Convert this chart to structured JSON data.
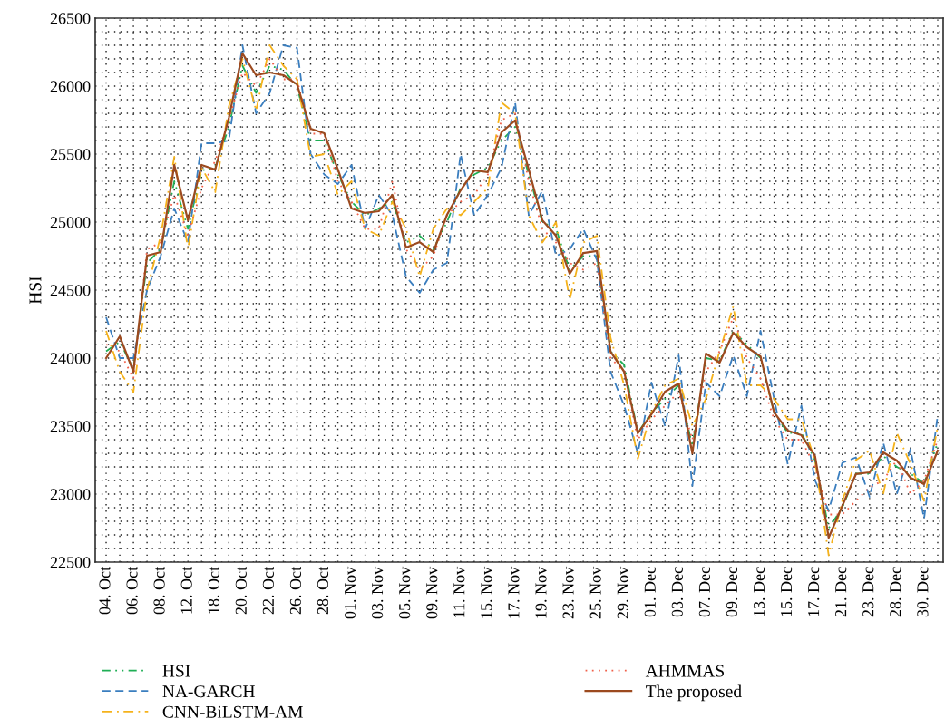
{
  "chart_data": {
    "type": "line",
    "ylabel": "HSI",
    "categories": [
      "04. Oct",
      null,
      "06. Oct",
      null,
      "08. Oct",
      null,
      "12. Oct",
      null,
      "18. Oct",
      null,
      "20. Oct",
      null,
      "22. Oct",
      null,
      "26. Oct",
      null,
      "28. Oct",
      null,
      "01. Nov",
      null,
      "03. Nov",
      null,
      "05. Nov",
      null,
      "09. Nov",
      null,
      "11. Nov",
      null,
      "15. Nov",
      null,
      "17. Nov",
      null,
      "19. Nov",
      null,
      "23. Nov",
      null,
      "25. Nov",
      null,
      "29. Nov",
      null,
      "01. Dec",
      null,
      "03. Dec",
      null,
      "07. Dec",
      null,
      "09. Dec",
      null,
      "13. Dec",
      null,
      "15. Dec",
      null,
      "17. Dec",
      null,
      "21. Dec",
      null,
      "23. Dec",
      null,
      "28. Dec",
      null,
      "30. Dec",
      null
    ],
    "series": [
      {
        "name": "HSI",
        "color": "#1fae55",
        "line_style": "dashdotdot",
        "values": [
          24050,
          24120,
          23920,
          24700,
          24800,
          25300,
          24950,
          25380,
          25400,
          25700,
          26150,
          25950,
          26150,
          26120,
          26000,
          25600,
          25600,
          25350,
          25150,
          25050,
          25100,
          25150,
          24850,
          24900,
          24800,
          25000,
          25250,
          25350,
          25400,
          25600,
          25700,
          25350,
          25000,
          24950,
          24650,
          24750,
          24750,
          24050,
          23950,
          23450,
          23600,
          23700,
          23800,
          23350,
          24000,
          23980,
          24200,
          24100,
          24000,
          23600,
          23450,
          23450,
          23250,
          22750,
          22900,
          23150,
          23150,
          23280,
          23200,
          23150,
          23080,
          23380
        ]
      },
      {
        "name": "NA-GARCH",
        "color": "#3a7ebf",
        "line_style": "dashed",
        "values": [
          24300,
          24000,
          24000,
          24500,
          24750,
          25100,
          24850,
          25580,
          25580,
          25600,
          26300,
          25800,
          25950,
          26300,
          26280,
          25500,
          25350,
          25280,
          25420,
          24950,
          25200,
          25050,
          24600,
          24480,
          24650,
          24700,
          25500,
          25050,
          25200,
          25400,
          25880,
          25050,
          25230,
          24750,
          24800,
          24950,
          24720,
          23900,
          23650,
          23300,
          23820,
          23500,
          24020,
          23060,
          23820,
          23720,
          24020,
          23720,
          24200,
          23700,
          23220,
          23650,
          23100,
          22880,
          23230,
          23270,
          22980,
          23380,
          23000,
          23330,
          22820,
          23580
        ]
      },
      {
        "name": "CNN-BiLSTM-AM",
        "color": "#f5b21b",
        "line_style": "dashdot",
        "values": [
          24200,
          23900,
          23750,
          24500,
          24900,
          25480,
          24800,
          25400,
          25220,
          25850,
          26200,
          25820,
          26300,
          26150,
          26050,
          25480,
          25500,
          25200,
          25300,
          24950,
          24900,
          25150,
          24950,
          24600,
          24950,
          25100,
          25050,
          25150,
          25250,
          25880,
          25800,
          25050,
          24850,
          25000,
          24430,
          24850,
          24900,
          24150,
          23800,
          23260,
          23600,
          23800,
          23850,
          23500,
          23700,
          24050,
          24380,
          23800,
          23800,
          23700,
          23550,
          23550,
          23250,
          22550,
          22950,
          23250,
          23320,
          23000,
          23450,
          23220,
          22950,
          23500
        ]
      },
      {
        "name": "AHMMAS",
        "color": "#f0604a",
        "line_style": "dotted",
        "values": [
          24100,
          24050,
          23850,
          24800,
          24850,
          25200,
          24900,
          25250,
          25450,
          25750,
          26100,
          26000,
          26200,
          26050,
          26050,
          25650,
          25650,
          25300,
          25150,
          24950,
          24950,
          25300,
          24800,
          24650,
          24750,
          25050,
          25150,
          25200,
          25350,
          25750,
          25800,
          25300,
          24950,
          24850,
          24700,
          24650,
          24700,
          24000,
          23900,
          23400,
          23550,
          23650,
          23750,
          23400,
          23900,
          24050,
          24300,
          24000,
          23850,
          23550,
          23400,
          23400,
          23200,
          22850,
          22850,
          22950,
          23050,
          23100,
          23250,
          23000,
          23100,
          23400
        ]
      },
      {
        "name": "The proposed",
        "color": "#9c4a1f",
        "line_style": "solid",
        "values": [
          24000,
          24160,
          23900,
          24753,
          24780,
          25420,
          25013,
          25420,
          25387,
          25767,
          26240,
          26080,
          26100,
          26080,
          26013,
          25687,
          25653,
          25387,
          25100,
          25067,
          25080,
          25200,
          24813,
          24853,
          24780,
          25053,
          25233,
          25380,
          25367,
          25660,
          25747,
          25387,
          25013,
          24900,
          24620,
          24773,
          24787,
          24047,
          23900,
          23447,
          23587,
          23753,
          23813,
          23300,
          24033,
          23967,
          24187,
          24080,
          24013,
          23600,
          23467,
          23433,
          23280,
          22680,
          22913,
          23147,
          23160,
          23307,
          23247,
          23120,
          23073,
          23320
        ]
      }
    ],
    "ylim": [
      22500,
      26500
    ],
    "yticks": [
      22500,
      23000,
      23500,
      24000,
      24500,
      25000,
      25500,
      26000,
      26500
    ],
    "grid": true,
    "legend": "bottom",
    "marker": "none"
  }
}
